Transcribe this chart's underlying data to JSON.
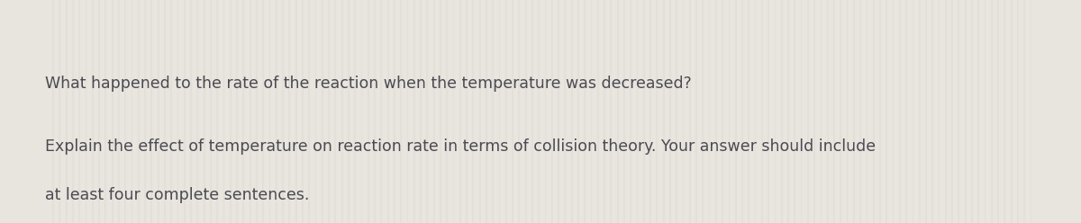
{
  "background_color": "#e8e4de",
  "stripe_color_light": "#ebe7e1",
  "stripe_color_dark": "#e0dcd6",
  "line1": "What happened to the rate of the reaction when the temperature was decreased?",
  "line2": "Explain the effect of temperature on reaction rate in terms of collision theory. Your answer should include",
  "line3": "at least four complete sentences.",
  "text_color": "#4a4a52",
  "font_size": 12.5,
  "fig_width": 12.0,
  "fig_height": 2.48,
  "dpi": 100
}
